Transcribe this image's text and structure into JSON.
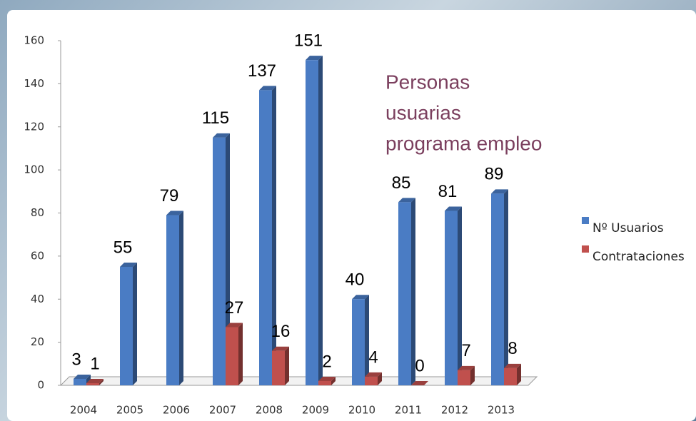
{
  "chart_data": {
    "type": "bar3d",
    "title": [
      "Personas",
      "usuarias",
      "programa empleo"
    ],
    "categories": [
      "2004",
      "2005",
      "2006",
      "2007",
      "2008",
      "2009",
      "2010",
      "2011",
      "2012",
      "2013"
    ],
    "series": [
      {
        "name": "Nº Usuarios",
        "color": "#4a7cc4",
        "values": [
          3,
          55,
          79,
          115,
          137,
          151,
          40,
          85,
          81,
          89
        ]
      },
      {
        "name": "Contrataciones",
        "color": "#c0504d",
        "values": [
          1,
          null,
          null,
          27,
          16,
          2,
          4,
          0,
          7,
          8
        ]
      }
    ],
    "ylim": [
      0,
      160
    ],
    "yticks": [
      0,
      20,
      40,
      60,
      80,
      100,
      120,
      140,
      160
    ],
    "grid": false,
    "legend": "right"
  }
}
